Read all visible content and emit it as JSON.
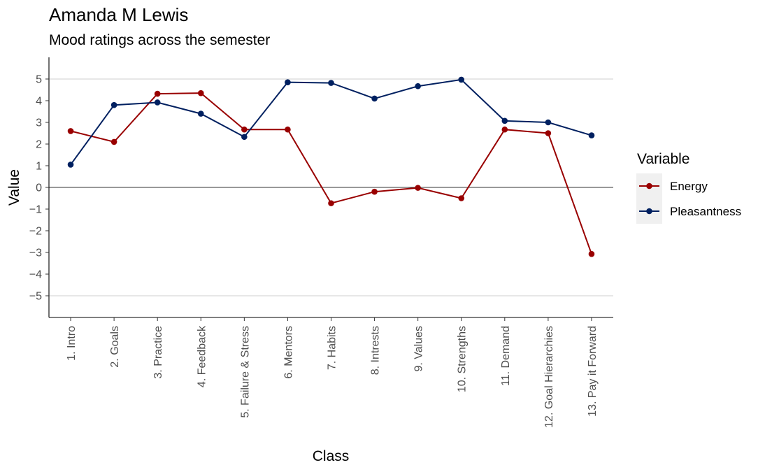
{
  "chart_data": {
    "type": "line",
    "title": "Amanda M Lewis",
    "subtitle": "Mood ratings across the semester",
    "xlabel": "Class",
    "ylabel": "Value",
    "ylim": [
      -6,
      6
    ],
    "yticks": [
      -5,
      -4,
      -3,
      -2,
      -1,
      0,
      1,
      2,
      3,
      4,
      5
    ],
    "ytick_labels": [
      "−5",
      "−4",
      "−3",
      "−2",
      "−1",
      "0",
      "1",
      "2",
      "3",
      "4",
      "5"
    ],
    "grid": "major y at ±5",
    "zero_line": true,
    "legend_title": "Variable",
    "legend_position": "right",
    "categories": [
      "1. Intro",
      "2. Goals",
      "3. Practice",
      "4. Feedback",
      "5. Failure & Stress",
      "6. Mentors",
      "7. Habits",
      "8. Intrests",
      "9. Values",
      "10. Strengths",
      "11. Demand",
      "12. Goal Hierarchies",
      "13. Pay it Forward"
    ],
    "series": [
      {
        "name": "Energy",
        "color": "#990000",
        "values": [
          2.6,
          2.1,
          4.32,
          4.35,
          2.67,
          2.67,
          -0.73,
          -0.2,
          -0.02,
          -0.5,
          2.67,
          2.5,
          -3.07
        ]
      },
      {
        "name": "Pleasantness",
        "color": "#002060",
        "values": [
          1.05,
          3.8,
          3.92,
          3.4,
          2.33,
          4.85,
          4.82,
          4.1,
          4.67,
          4.97,
          3.07,
          3.0,
          2.4
        ]
      }
    ]
  }
}
